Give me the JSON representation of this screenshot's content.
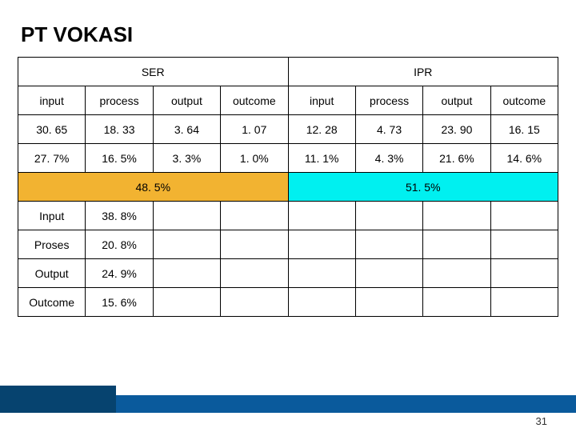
{
  "title": "PT VOKASI",
  "groupHeaders": {
    "left": "SER",
    "right": "IPR"
  },
  "columns": [
    "input",
    "process",
    "output",
    "outcome",
    "input",
    "process",
    "output",
    "outcome"
  ],
  "row1": [
    "30. 65",
    "18. 33",
    "3. 64",
    "1. 07",
    "12. 28",
    "4. 73",
    "23. 90",
    "16. 15"
  ],
  "row2": [
    "27. 7%",
    "16. 5%",
    "3. 3%",
    "1. 0%",
    "11. 1%",
    "4. 3%",
    "21. 6%",
    "14. 6%"
  ],
  "summary": {
    "left": "48. 5%",
    "right": "51. 5%"
  },
  "bottomRows": [
    {
      "label": "Input",
      "value": "38. 8%"
    },
    {
      "label": "Proses",
      "value": "20. 8%"
    },
    {
      "label": "Output",
      "value": "24. 9%"
    },
    {
      "label": "Outcome",
      "value": "15. 6%"
    }
  ],
  "pageNumber": "31",
  "colors": {
    "orange": "#f2b331",
    "cyan": "#00f0f0",
    "footerBar": "#0a5a9c",
    "footerBlock": "#06436f"
  }
}
